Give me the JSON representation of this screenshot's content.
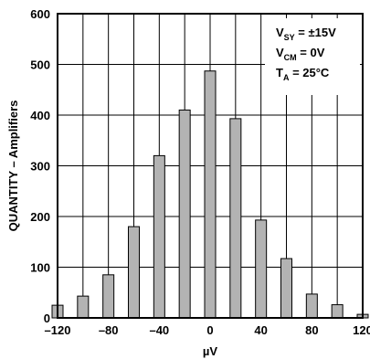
{
  "chart_data": {
    "type": "bar",
    "title": "",
    "xlabel": "µV",
    "ylabel": "QUANTITY – Amplifiers",
    "xlim": [
      -120,
      120
    ],
    "ylim": [
      0,
      600
    ],
    "x_ticks": [
      -120,
      -80,
      -40,
      0,
      40,
      80,
      120
    ],
    "x_tick_labels": [
      "–120",
      "–80",
      "–40",
      "0",
      "40",
      "80",
      "120"
    ],
    "y_ticks": [
      0,
      100,
      200,
      300,
      400,
      500,
      600
    ],
    "y_tick_labels": [
      "0",
      "100",
      "200",
      "300",
      "400",
      "500",
      "600"
    ],
    "x": [
      -120,
      -100,
      -80,
      -60,
      -40,
      -20,
      0,
      20,
      40,
      60,
      80,
      100,
      120
    ],
    "values": [
      25,
      43,
      85,
      180,
      320,
      410,
      487,
      393,
      193,
      117,
      47,
      26,
      7
    ],
    "grid": true,
    "bar_color": "#b3b3b3",
    "annotations": [
      {
        "main": "V",
        "sub": "SY",
        "rest": " = ±15V"
      },
      {
        "main": "V",
        "sub": "CM",
        "rest": " = 0V"
      },
      {
        "main": "T",
        "sub": "A",
        "rest": " = 25°C"
      }
    ]
  }
}
